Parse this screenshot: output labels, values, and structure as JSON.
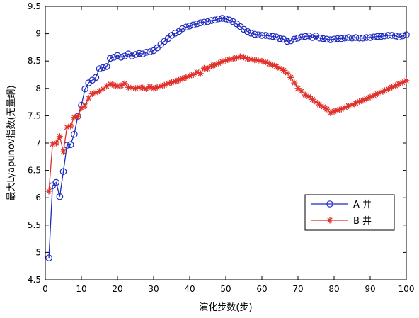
{
  "chart_data": {
    "type": "line",
    "title": "",
    "xlabel": "演化步数(步)",
    "ylabel": "最大Lyapunov指数(无量纲)",
    "xlim": [
      0,
      100
    ],
    "ylim": [
      4.5,
      9.5
    ],
    "xticks": [
      0,
      10,
      20,
      30,
      40,
      50,
      60,
      70,
      80,
      90,
      100
    ],
    "yticks": [
      4.5,
      5,
      5.5,
      6,
      6.5,
      7,
      7.5,
      8,
      8.5,
      9,
      9.5
    ],
    "xtick_labels": [
      "0",
      "10",
      "20",
      "30",
      "40",
      "50",
      "60",
      "70",
      "80",
      "90",
      "100"
    ],
    "ytick_labels": [
      "4.5",
      "5",
      "5.5",
      "6",
      "6.5",
      "7",
      "7.5",
      "8",
      "8.5",
      "9",
      "9.5"
    ],
    "grid": false,
    "legend_position": "lower-right",
    "series": [
      {
        "name": "A 井",
        "color": "#1f2bbf",
        "marker": "circle",
        "x": [
          1,
          2,
          3,
          4,
          5,
          6,
          7,
          8,
          9,
          10,
          11,
          12,
          13,
          14,
          15,
          16,
          17,
          18,
          19,
          20,
          21,
          22,
          23,
          24,
          25,
          26,
          27,
          28,
          29,
          30,
          31,
          32,
          33,
          34,
          35,
          36,
          37,
          38,
          39,
          40,
          41,
          42,
          43,
          44,
          45,
          46,
          47,
          48,
          49,
          50,
          51,
          52,
          53,
          54,
          55,
          56,
          57,
          58,
          59,
          60,
          61,
          62,
          63,
          64,
          65,
          66,
          67,
          68,
          69,
          70,
          71,
          72,
          73,
          74,
          75,
          76,
          77,
          78,
          79,
          80,
          81,
          82,
          83,
          84,
          85,
          86,
          87,
          88,
          89,
          90,
          91,
          92,
          93,
          94,
          95,
          96,
          97,
          98,
          99,
          100
        ],
        "y": [
          4.9,
          6.22,
          6.28,
          6.02,
          6.48,
          6.96,
          6.97,
          7.16,
          7.49,
          7.69,
          7.99,
          8.1,
          8.15,
          8.2,
          8.36,
          8.38,
          8.4,
          8.55,
          8.57,
          8.6,
          8.57,
          8.59,
          8.63,
          8.59,
          8.62,
          8.64,
          8.63,
          8.66,
          8.67,
          8.69,
          8.74,
          8.8,
          8.86,
          8.91,
          8.97,
          9.01,
          9.04,
          9.09,
          9.12,
          9.14,
          9.16,
          9.18,
          9.2,
          9.21,
          9.22,
          9.24,
          9.25,
          9.27,
          9.28,
          9.27,
          9.25,
          9.22,
          9.18,
          9.13,
          9.08,
          9.04,
          9.01,
          8.99,
          8.98,
          8.97,
          8.97,
          8.96,
          8.95,
          8.94,
          8.91,
          8.9,
          8.86,
          8.87,
          8.9,
          8.92,
          8.94,
          8.95,
          8.96,
          8.93,
          8.96,
          8.92,
          8.91,
          8.9,
          8.89,
          8.9,
          8.91,
          8.91,
          8.92,
          8.93,
          8.92,
          8.93,
          8.92,
          8.92,
          8.93,
          8.93,
          8.94,
          8.95,
          8.95,
          8.96,
          8.97,
          8.97,
          8.96,
          8.94,
          8.96,
          8.98
        ]
      },
      {
        "name": "B 井",
        "color": "#e0302a",
        "marker": "star",
        "x": [
          1,
          2,
          3,
          4,
          5,
          6,
          7,
          8,
          9,
          10,
          11,
          12,
          13,
          14,
          15,
          16,
          17,
          18,
          19,
          20,
          21,
          22,
          23,
          24,
          25,
          26,
          27,
          28,
          29,
          30,
          31,
          32,
          33,
          34,
          35,
          36,
          37,
          38,
          39,
          40,
          41,
          42,
          43,
          44,
          45,
          46,
          47,
          48,
          49,
          50,
          51,
          52,
          53,
          54,
          55,
          56,
          57,
          58,
          59,
          60,
          61,
          62,
          63,
          64,
          65,
          66,
          67,
          68,
          69,
          70,
          71,
          72,
          73,
          74,
          75,
          76,
          77,
          78,
          79,
          80,
          81,
          82,
          83,
          84,
          85,
          86,
          87,
          88,
          89,
          90,
          91,
          92,
          93,
          94,
          95,
          96,
          97,
          98,
          99,
          100
        ],
        "y": [
          6.12,
          6.98,
          7.0,
          7.12,
          6.84,
          7.29,
          7.31,
          7.47,
          7.49,
          7.64,
          7.68,
          7.82,
          7.9,
          7.92,
          7.95,
          7.99,
          8.04,
          8.08,
          8.06,
          8.04,
          8.05,
          8.09,
          8.02,
          8.01,
          8.0,
          8.02,
          8.01,
          7.99,
          8.03,
          8.0,
          8.02,
          8.04,
          8.06,
          8.09,
          8.11,
          8.13,
          8.15,
          8.18,
          8.2,
          8.23,
          8.25,
          8.3,
          8.27,
          8.37,
          8.36,
          8.41,
          8.43,
          8.46,
          8.49,
          8.51,
          8.53,
          8.54,
          8.56,
          8.58,
          8.57,
          8.54,
          8.53,
          8.52,
          8.51,
          8.5,
          8.48,
          8.45,
          8.43,
          8.4,
          8.37,
          8.33,
          8.28,
          8.2,
          8.1,
          8.0,
          7.95,
          7.88,
          7.85,
          7.8,
          7.75,
          7.7,
          7.66,
          7.62,
          7.55,
          7.58,
          7.6,
          7.62,
          7.65,
          7.68,
          7.7,
          7.73,
          7.76,
          7.78,
          7.81,
          7.84,
          7.87,
          7.9,
          7.93,
          7.96,
          7.99,
          8.02,
          8.05,
          8.08,
          8.11,
          8.14
        ]
      }
    ]
  }
}
